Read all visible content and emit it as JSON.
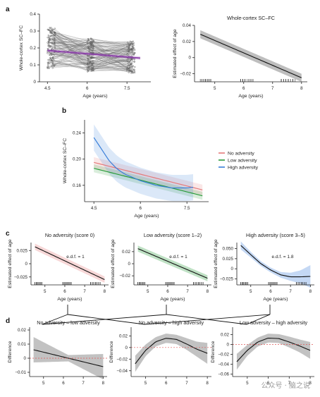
{
  "panel_labels": [
    "a",
    "b",
    "c",
    "d"
  ],
  "watermark": "公众号 · 脑之说",
  "chart_data": [
    {
      "id": "a_left",
      "type": "line",
      "xlabel": "Age (years)",
      "ylabel": "Whole-cortex SC–FC",
      "xticks": [
        "4.5",
        "6",
        "7.5"
      ],
      "yticks": [
        "0",
        "0.1",
        "0.2",
        "0.3",
        "0.4"
      ],
      "xlim": [
        4.2,
        8.4
      ],
      "ylim": [
        0,
        0.4
      ],
      "fit_line": {
        "x": [
          4.5,
          8.0
        ],
        "y": [
          0.185,
          0.14
        ],
        "color": "#8a3ea8"
      },
      "point_color": "#555555"
    },
    {
      "id": "a_right",
      "type": "line",
      "title": "Whole-cortex SC–FC",
      "xlabel": "Age (years)",
      "ylabel": "Estimated effect of age",
      "xticks": [
        "5",
        "6",
        "7",
        "8"
      ],
      "yticks": [
        "−0.02",
        "0",
        "0.02",
        "0.04"
      ],
      "xlim": [
        4.3,
        8.2
      ],
      "ylim": [
        -0.03,
        0.04
      ],
      "fit": {
        "x": [
          4.5,
          8.0
        ],
        "y": [
          0.029,
          -0.025
        ],
        "band": 0.005
      }
    },
    {
      "id": "b",
      "type": "line",
      "xlabel": "Age (years)",
      "ylabel": "Whole-cortex SC–FC",
      "xticks": [
        "4.5",
        "6",
        "7.5"
      ],
      "yticks": [
        "0.16",
        "0.20",
        "0.24"
      ],
      "xlim": [
        4.2,
        8.2
      ],
      "ylim": [
        0.135,
        0.26
      ],
      "series": [
        {
          "name": "No adversity",
          "color": "#e47b7b",
          "x": [
            4.5,
            5.0,
            5.5,
            6.0,
            6.5,
            7.0,
            7.5,
            8.0
          ],
          "y": [
            0.195,
            0.189,
            0.183,
            0.177,
            0.171,
            0.165,
            0.159,
            0.153
          ],
          "band": 0.008
        },
        {
          "name": "Low adversity",
          "color": "#2a9a3a",
          "x": [
            4.5,
            5.0,
            5.5,
            6.0,
            6.5,
            7.0,
            7.5,
            8.0
          ],
          "y": [
            0.186,
            0.18,
            0.174,
            0.168,
            0.162,
            0.156,
            0.15,
            0.144
          ],
          "band": 0.006
        },
        {
          "name": "High adversity",
          "color": "#3a7fd9",
          "x": [
            4.5,
            4.75,
            5.0,
            5.25,
            5.5,
            6.0,
            6.5,
            7.0,
            7.5,
            7.7
          ],
          "y": [
            0.233,
            0.215,
            0.197,
            0.185,
            0.177,
            0.167,
            0.16,
            0.156,
            0.156,
            0.157
          ],
          "band": 0.02
        }
      ],
      "legend_position": "right"
    },
    {
      "id": "c1",
      "type": "line",
      "title": "No adversity (score 0)",
      "annotation": "e.d.f. = 1",
      "xlabel": "Age (years)",
      "ylabel": "Estimated effect of age",
      "xticks": [
        "5",
        "6",
        "7",
        "8"
      ],
      "yticks": [
        "−0.025",
        "0",
        "0.025"
      ],
      "xlim": [
        4.3,
        8.2
      ],
      "ylim": [
        -0.04,
        0.04
      ],
      "fit": {
        "x": [
          4.5,
          8.0
        ],
        "y": [
          0.032,
          -0.03
        ],
        "band": 0.006
      },
      "color": "#e47b7b"
    },
    {
      "id": "c2",
      "type": "line",
      "title": "Low adversity (score 1–2)",
      "annotation": "e.d.f. = 1",
      "xlabel": "Age (years)",
      "ylabel": "Estimated effect of age",
      "xticks": [
        "5",
        "6",
        "7",
        "8"
      ],
      "yticks": [
        "−0.02",
        "0",
        "0.02"
      ],
      "xlim": [
        4.3,
        8.2
      ],
      "ylim": [
        -0.035,
        0.035
      ],
      "fit": {
        "x": [
          4.5,
          8.0
        ],
        "y": [
          0.025,
          -0.024
        ],
        "band": 0.005
      },
      "color": "#2a9a3a"
    },
    {
      "id": "c3",
      "type": "line",
      "title": "High adversity (score 3–5)",
      "annotation": "e.d.f. = 1.8",
      "xlabel": "Age (years)",
      "ylabel": "Estimated effect of age",
      "xticks": [
        "5",
        "6",
        "7",
        "8"
      ],
      "yticks": [
        "−0.025",
        "0",
        "0.025",
        "0.050"
      ],
      "xlim": [
        4.3,
        8.2
      ],
      "ylim": [
        -0.04,
        0.065
      ],
      "fit": {
        "x": [
          4.5,
          5.0,
          5.5,
          6.0,
          6.5,
          7.0,
          7.5,
          8.0
        ],
        "y": [
          0.058,
          0.035,
          0.013,
          -0.003,
          -0.015,
          -0.02,
          -0.02,
          -0.019
        ],
        "band": [
          0.01,
          0.007,
          0.006,
          0.006,
          0.007,
          0.01,
          0.016,
          0.028
        ]
      },
      "color": "#3a7fd9"
    },
    {
      "id": "d1",
      "type": "line",
      "title": "No adversity – low adversity",
      "xlabel": "",
      "ylabel": "Difference",
      "xticks": [
        "5",
        "6",
        "7",
        "8"
      ],
      "yticks": [
        "−0.01",
        "0",
        "0.01",
        "0.02"
      ],
      "xlim": [
        4.3,
        8.2
      ],
      "ylim": [
        -0.013,
        0.022
      ],
      "fit": {
        "x": [
          4.5,
          8.0
        ],
        "y": [
          0.006,
          -0.006
        ],
        "band_ends": 0.009
      }
    },
    {
      "id": "d2",
      "type": "line",
      "title": "No adversity – high adversity",
      "xlabel": "",
      "ylabel": "Difference",
      "xticks": [
        "5",
        "6",
        "7",
        "8"
      ],
      "yticks": [
        "−0.04",
        "−0.02",
        "0",
        "0.02"
      ],
      "xlim": [
        4.3,
        8.2
      ],
      "ylim": [
        -0.05,
        0.035
      ],
      "fit": {
        "x": [
          4.5,
          5.0,
          5.5,
          6.0,
          6.5,
          7.0,
          7.5,
          8.0
        ],
        "y": [
          -0.028,
          -0.005,
          0.01,
          0.016,
          0.014,
          0.006,
          -0.003,
          -0.01
        ],
        "band": [
          0.014,
          0.01,
          0.008,
          0.008,
          0.008,
          0.01,
          0.013,
          0.018
        ]
      }
    },
    {
      "id": "d3",
      "type": "line",
      "title": "Low adversity – high adversity",
      "xlabel": "",
      "ylabel": "Difference",
      "xticks": [
        "5",
        "6",
        "7",
        "8"
      ],
      "yticks": [
        "−0.06",
        "−0.04",
        "−0.02",
        "0",
        "0.02"
      ],
      "xlim": [
        4.3,
        8.2
      ],
      "ylim": [
        -0.065,
        0.035
      ],
      "fit": {
        "x": [
          4.5,
          5.0,
          5.5,
          6.0,
          6.5,
          7.0,
          7.5,
          8.0
        ],
        "y": [
          -0.035,
          -0.012,
          0.005,
          0.013,
          0.012,
          0.005,
          -0.003,
          -0.012
        ],
        "band": [
          0.016,
          0.011,
          0.009,
          0.009,
          0.009,
          0.011,
          0.013,
          0.017
        ]
      }
    }
  ]
}
